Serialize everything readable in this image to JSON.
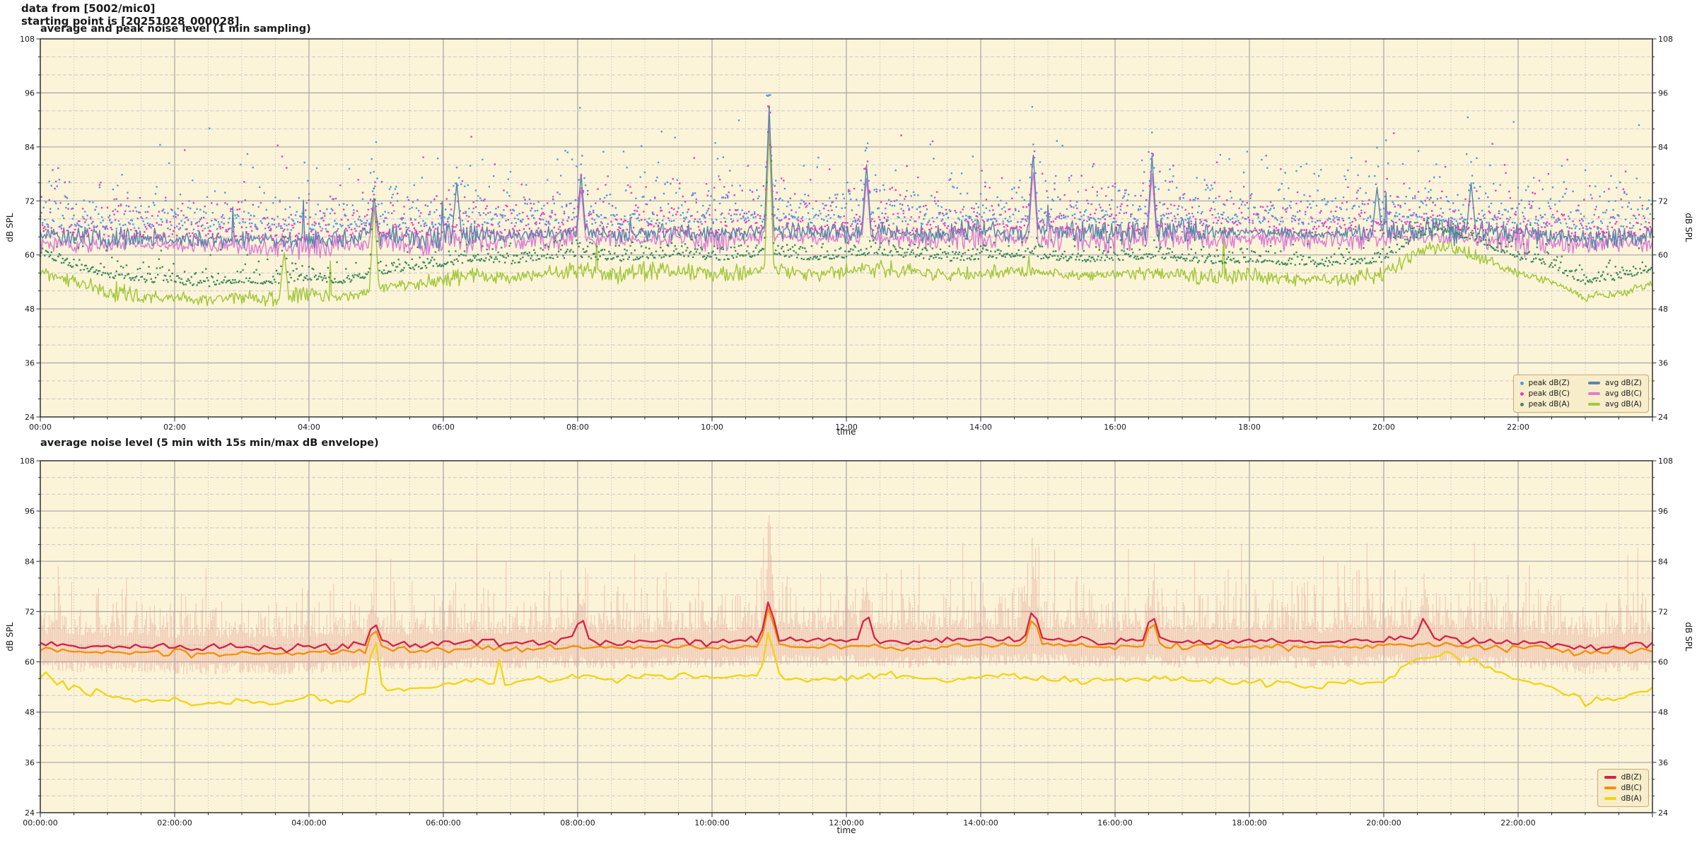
{
  "header": {
    "line1": "data from [5002/mic0]",
    "line2": "starting point is [20251028_000028]"
  },
  "palette": {
    "plot_bg": "#FCF4D9",
    "grid_major": "#ABABAB",
    "grid_minor": "#C6C6C6",
    "spine": "#2B2B2B",
    "tick_text": "#1A1A1A",
    "legend_bg": "#F7EDCB",
    "legend_border": "#C9A87C"
  },
  "seed": 20251028,
  "baselines": {
    "step_hours": 0.5,
    "Z": [
      64.5,
      64.0,
      63.6,
      63.8,
      63.5,
      63.3,
      63.6,
      63.3,
      63.5,
      63.8,
      64.6,
      64.0,
      64.3,
      64.6,
      64.4,
      64.7,
      65.0,
      64.6,
      64.8,
      65.0,
      64.7,
      65.2,
      65.5,
      65.0,
      65.3,
      65.0,
      64.8,
      65.1,
      65.4,
      65.2,
      65.6,
      65.2,
      64.9,
      65.3,
      65.0,
      64.8,
      65.1,
      64.9,
      64.6,
      64.9,
      65.2,
      65.6,
      65.3,
      65.0,
      64.7,
      64.2,
      63.4,
      63.8,
      64.2
    ],
    "C": [
      63.0,
      62.5,
      62.2,
      62.4,
      62.1,
      61.9,
      62.2,
      61.9,
      62.1,
      62.4,
      63.2,
      62.6,
      62.9,
      63.2,
      63.0,
      63.3,
      63.6,
      63.2,
      63.4,
      63.6,
      63.3,
      63.8,
      64.1,
      63.6,
      63.9,
      63.6,
      63.4,
      63.7,
      64.0,
      63.8,
      64.2,
      63.8,
      63.5,
      63.9,
      63.6,
      63.4,
      63.7,
      63.5,
      63.2,
      63.5,
      63.8,
      64.2,
      63.9,
      63.6,
      63.3,
      62.8,
      62.0,
      62.4,
      62.8
    ],
    "A": [
      56.5,
      54.0,
      52.0,
      51.0,
      50.5,
      50.0,
      50.8,
      50.2,
      51.5,
      50.5,
      52.5,
      53.5,
      54.5,
      55.5,
      55.0,
      56.0,
      56.5,
      55.5,
      56.0,
      56.8,
      55.8,
      56.2,
      56.8,
      55.6,
      56.4,
      57.0,
      56.2,
      55.6,
      56.0,
      56.6,
      56.0,
      55.4,
      55.8,
      56.2,
      55.6,
      55.0,
      55.4,
      54.8,
      54.4,
      54.8,
      55.4,
      61.0,
      61.8,
      59.0,
      56.0,
      54.0,
      50.5,
      51.5,
      53.5
    ]
  },
  "chart_data": [
    {
      "type": "line+scatter",
      "title": "average and peak noise level (1 min sampling)",
      "xlabel": "time",
      "ylabel_left": "dB SPL",
      "ylabel_right": "dB SPL",
      "x_hours": [
        0,
        24
      ],
      "ylim": [
        24,
        108
      ],
      "ytick_step": 12,
      "ytick_minor_step": 4,
      "xtick_step_hours": 2,
      "xtick_minor_hours": 0.5,
      "grid": true,
      "sampling_minutes": 1,
      "event_width_hours": 0.07,
      "ytick_labels": [
        "24",
        "36",
        "48",
        "60",
        "72",
        "84",
        "96",
        "108"
      ],
      "xtick_labels": [
        "00:00",
        "02:00",
        "04:00",
        "06:00",
        "08:00",
        "10:00",
        "12:00",
        "14:00",
        "16:00",
        "18:00",
        "20:00",
        "22:00"
      ],
      "series": [
        {
          "name": "avg dB(A)",
          "style": "line",
          "color": "#A2C83C",
          "base": "A",
          "noise_db": 1.8,
          "spike_prob": 0.004,
          "spike_db": 8,
          "events": [
            {
              "t": 3.63,
              "v": 61
            },
            {
              "t": 4.97,
              "v": 72
            },
            {
              "t": 10.85,
              "v": 88
            }
          ]
        },
        {
          "name": "avg dB(C)",
          "style": "line",
          "color": "#DC7ED3",
          "base": "C",
          "noise_db": 2.6,
          "spike_prob": 0.002,
          "spike_db": 7,
          "events": [
            {
              "t": 4.97,
              "v": 71
            },
            {
              "t": 8.05,
              "v": 75
            },
            {
              "t": 10.85,
              "v": 91
            },
            {
              "t": 12.3,
              "v": 77
            },
            {
              "t": 14.78,
              "v": 79
            },
            {
              "t": 16.55,
              "v": 78
            }
          ]
        },
        {
          "name": "avg dB(Z)",
          "style": "line",
          "color": "#5A87AC",
          "base": "Z",
          "noise_db": 2.6,
          "spike_prob": 0.003,
          "spike_db": 8,
          "events": [
            {
              "t": 4.97,
              "v": 73
            },
            {
              "t": 6.2,
              "v": 76
            },
            {
              "t": 8.05,
              "v": 78
            },
            {
              "t": 10.85,
              "v": 93
            },
            {
              "t": 12.3,
              "v": 80
            },
            {
              "t": 14.78,
              "v": 83
            },
            {
              "t": 16.55,
              "v": 82
            },
            {
              "t": 19.9,
              "v": 75
            },
            {
              "t": 21.3,
              "v": 76
            }
          ]
        },
        {
          "name": "peak dB(A)",
          "style": "scatter",
          "color": "#3D8A5F",
          "base": "A",
          "offset_db": 3.0,
          "spread_db": 1.4
        },
        {
          "name": "peak dB(C)",
          "style": "scatter",
          "color": "#E83CC8",
          "base": "C",
          "offset_db": 1.5,
          "spread_db": 3.6
        },
        {
          "name": "peak dB(Z)",
          "style": "scatter",
          "color": "#4D9BE6",
          "base": "Z",
          "offset_db": 2.0,
          "spread_db": 3.8
        }
      ],
      "legend": {
        "position": "lower right",
        "columns": [
          [
            "peak dB(Z)",
            "peak dB(C)",
            "peak dB(A)"
          ],
          [
            "avg dB(Z)",
            "avg dB(C)",
            "avg dB(A)"
          ]
        ]
      }
    },
    {
      "type": "line+envelope",
      "title": "average noise level (5 min with 15s min/max dB envelope)",
      "xlabel": "time",
      "ylabel_left": "dB SPL",
      "ylabel_right": "dB SPL",
      "x_hours": [
        0,
        24
      ],
      "ylim": [
        24,
        108
      ],
      "ytick_step": 12,
      "ytick_minor_step": 4,
      "xtick_step_hours": 2,
      "xtick_minor_hours": 0.5,
      "grid": true,
      "sampling_minutes": 5,
      "event_width_hours": 0.13,
      "ytick_labels": [
        "24",
        "36",
        "48",
        "60",
        "72",
        "84",
        "96",
        "108"
      ],
      "xtick_labels": [
        "00:00:00",
        "02:00:00",
        "04:00:00",
        "06:00:00",
        "08:00:00",
        "10:00:00",
        "12:00:00",
        "14:00:00",
        "16:00:00",
        "18:00:00",
        "20:00:00",
        "22:00:00"
      ],
      "envelope": {
        "color": "#E08A80",
        "opacity": 0.42,
        "min_below_C_db": 2.0,
        "min_spread_db": 3.0,
        "max_above_Z_db": 2.2,
        "max_spread_db": 4.2,
        "events": [
          {
            "t": 10.85,
            "v": 95
          }
        ]
      },
      "series": [
        {
          "name": "dB(A)",
          "style": "line",
          "color": "#F2D411",
          "base": "A",
          "noise_db": 1.2,
          "spike_prob": 0.004,
          "spike_db": 4,
          "events": [
            {
              "t": 4.97,
              "v": 68
            },
            {
              "t": 10.85,
              "v": 68.5
            }
          ]
        },
        {
          "name": "dB(C)",
          "style": "line",
          "color": "#F29100",
          "base": "C",
          "noise_db": 0.9,
          "spike_prob": 0.003,
          "spike_db": 3.5,
          "events": [
            {
              "t": 4.97,
              "v": 68.5
            },
            {
              "t": 10.85,
              "v": 74
            },
            {
              "t": 14.78,
              "v": 71.5
            },
            {
              "t": 16.55,
              "v": 70.5
            }
          ]
        },
        {
          "name": "dB(Z)",
          "style": "line",
          "color": "#D42148",
          "base": "Z",
          "noise_db": 1.0,
          "spike_prob": 0.004,
          "spike_db": 4,
          "events": [
            {
              "t": 4.97,
              "v": 70
            },
            {
              "t": 8.05,
              "v": 71.5
            },
            {
              "t": 10.85,
              "v": 75.5
            },
            {
              "t": 12.3,
              "v": 72.5
            },
            {
              "t": 14.78,
              "v": 73.5
            },
            {
              "t": 16.55,
              "v": 72
            },
            {
              "t": 20.6,
              "v": 71
            }
          ]
        }
      ],
      "legend": {
        "position": "lower right",
        "columns": [
          [
            "dB(Z)",
            "dB(C)",
            "dB(A)"
          ]
        ]
      }
    }
  ]
}
